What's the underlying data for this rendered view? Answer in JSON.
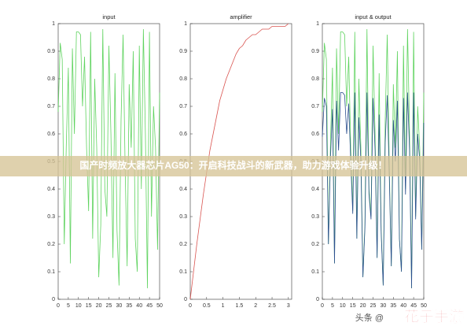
{
  "chart_data": [
    {
      "type": "line",
      "title": "input",
      "x": [
        0,
        1,
        2,
        3,
        4,
        5,
        6,
        7,
        8,
        9,
        10,
        11,
        12,
        13,
        14,
        15,
        16,
        17,
        18,
        19,
        20,
        21,
        22,
        23,
        24,
        25,
        26,
        27,
        28,
        29,
        30,
        31,
        32,
        33,
        34,
        35,
        36,
        37,
        38,
        39,
        40,
        41,
        42,
        43,
        44,
        45,
        46,
        47,
        48,
        49,
        50
      ],
      "series": [
        {
          "color": "#5fd35f",
          "values": [
            0.68,
            0.93,
            0.87,
            0.2,
            0.56,
            0.84,
            0.13,
            0.91,
            0.6,
            0.97,
            0.97,
            0.96,
            0.7,
            0.88,
            0.55,
            0.32,
            0.97,
            0.22,
            0.8,
            0.55,
            0.08,
            0.27,
            0.98,
            0.4,
            0.3,
            0.92,
            0.6,
            0.15,
            0.82,
            0.25,
            0.05,
            0.65,
            0.96,
            0.48,
            0.12,
            0.78,
            0.55,
            0.9,
            0.22,
            0.1,
            0.92,
            0.4,
            0.98,
            0.6,
            0.04,
            0.97,
            0.3,
            0.7,
            0.55,
            0.18,
            0.75
          ]
        }
      ],
      "xlim": [
        0,
        50
      ],
      "xticks": [
        0,
        5,
        10,
        15,
        20,
        25,
        30,
        35,
        40,
        45,
        50
      ],
      "ylim": [
        0,
        1
      ],
      "yticks": [
        0,
        0.1,
        0.2,
        0.3,
        0.4,
        0.5,
        0.6,
        0.7,
        0.8,
        0.9,
        1
      ]
    },
    {
      "type": "line",
      "title": "amplifier",
      "x": [
        0,
        0.1,
        0.2,
        0.3,
        0.4,
        0.5,
        0.6,
        0.7,
        0.8,
        0.9,
        1,
        1.1,
        1.2,
        1.3,
        1.4,
        1.5,
        1.6,
        1.7,
        1.8,
        1.9,
        2,
        2.1,
        2.2,
        2.3,
        2.4,
        2.5,
        2.6,
        2.7,
        2.8,
        2.9,
        3
      ],
      "series": [
        {
          "color": "#d9534f",
          "values": [
            0,
            0.1,
            0.2,
            0.29,
            0.38,
            0.46,
            0.54,
            0.6,
            0.66,
            0.72,
            0.76,
            0.8,
            0.83,
            0.86,
            0.89,
            0.91,
            0.92,
            0.94,
            0.95,
            0.96,
            0.96,
            0.97,
            0.98,
            0.98,
            0.98,
            0.99,
            0.99,
            0.99,
            0.99,
            0.99,
            1
          ]
        }
      ],
      "xlim": [
        0,
        3.1
      ],
      "xticks": [
        0,
        0.5,
        1,
        1.5,
        2,
        2.5,
        3
      ],
      "ylim": [
        0,
        1
      ],
      "yticks": [
        0,
        0.1,
        0.2,
        0.3,
        0.4,
        0.5,
        0.6,
        0.7,
        0.8,
        0.9,
        1
      ]
    },
    {
      "type": "line",
      "title": "input & output",
      "x": [
        0,
        1,
        2,
        3,
        4,
        5,
        6,
        7,
        8,
        9,
        10,
        11,
        12,
        13,
        14,
        15,
        16,
        17,
        18,
        19,
        20,
        21,
        22,
        23,
        24,
        25,
        26,
        27,
        28,
        29,
        30,
        31,
        32,
        33,
        34,
        35,
        36,
        37,
        38,
        39,
        40,
        41,
        42,
        43,
        44,
        45,
        46,
        47,
        48,
        49,
        50
      ],
      "series": [
        {
          "color": "#5fd35f",
          "values": [
            0.68,
            0.93,
            0.87,
            0.2,
            0.56,
            0.84,
            0.13,
            0.91,
            0.6,
            0.97,
            0.97,
            0.96,
            0.7,
            0.88,
            0.55,
            0.32,
            0.97,
            0.22,
            0.8,
            0.55,
            0.08,
            0.27,
            0.98,
            0.4,
            0.3,
            0.92,
            0.6,
            0.15,
            0.82,
            0.25,
            0.05,
            0.65,
            0.96,
            0.48,
            0.12,
            0.78,
            0.55,
            0.9,
            0.22,
            0.1,
            0.92,
            0.4,
            0.98,
            0.6,
            0.04,
            0.97,
            0.3,
            0.7,
            0.55,
            0.18,
            0.75
          ]
        },
        {
          "color": "#2c4f8f",
          "values": [
            0.59,
            0.73,
            0.7,
            0.2,
            0.51,
            0.69,
            0.13,
            0.72,
            0.54,
            0.75,
            0.75,
            0.74,
            0.6,
            0.71,
            0.5,
            0.31,
            0.75,
            0.22,
            0.66,
            0.5,
            0.08,
            0.26,
            0.75,
            0.38,
            0.29,
            0.73,
            0.54,
            0.15,
            0.67,
            0.24,
            0.05,
            0.57,
            0.74,
            0.45,
            0.12,
            0.65,
            0.5,
            0.72,
            0.22,
            0.1,
            0.73,
            0.38,
            0.75,
            0.54,
            0.04,
            0.75,
            0.29,
            0.6,
            0.5,
            0.18,
            0.64
          ]
        }
      ],
      "xlim": [
        0,
        50
      ],
      "xticks": [
        0,
        5,
        10,
        15,
        20,
        25,
        30,
        35,
        40,
        45,
        50
      ],
      "ylim": [
        0,
        1
      ],
      "yticks": [
        0,
        0.1,
        0.2,
        0.3,
        0.4,
        0.5,
        0.6,
        0.7,
        0.8,
        0.9,
        1
      ]
    }
  ],
  "banner": "国产时频放大器芯片AG50：开启科技战斗的新武器，助力游戏体验升级！",
  "watermark": {
    "source": "头条 @",
    "brand": "花子手游"
  }
}
